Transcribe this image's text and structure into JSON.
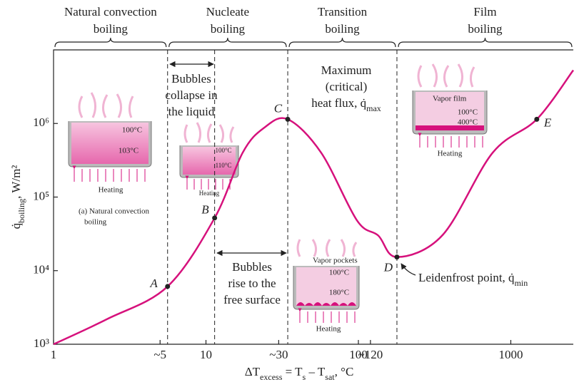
{
  "chart_data": {
    "type": "line",
    "x_label": [
      {
        "t": "ΔT"
      },
      {
        "sub": "excess"
      },
      {
        "t": " = T"
      },
      {
        "sub": "s"
      },
      {
        "t": " – T"
      },
      {
        "sub": "sat"
      },
      {
        "t": ", °C"
      }
    ],
    "y_label": [
      {
        "t": "q̇"
      },
      {
        "sub": "boiling"
      },
      {
        "t": ", W/m²"
      }
    ],
    "xscale": "log",
    "yscale": "log",
    "xlim": [
      1,
      2570
    ],
    "ylim": [
      1000,
      10000000
    ],
    "xticks": [
      1,
      {
        "value": 5,
        "label": "~5"
      },
      10,
      {
        "value": 30,
        "label": "~30"
      },
      100,
      {
        "value": 120,
        "label": "~120"
      },
      1000
    ],
    "yticks": [
      {
        "value": 1000,
        "label": "10³"
      },
      {
        "value": 10000,
        "label": "10⁴"
      },
      {
        "value": 100000,
        "label": "10⁵"
      },
      {
        "value": 1000000,
        "label": "10⁶"
      }
    ],
    "color": "#d6117c",
    "x": [
      1,
      2.25,
      5.6,
      11.4,
      17.4,
      24,
      34.4,
      57,
      98,
      135,
      179,
      357,
      760,
      1480,
      2570
    ],
    "values": [
      1000,
      2200,
      6100,
      52000,
      400000,
      870000,
      1140000,
      400000,
      48000,
      30000,
      15300,
      30500,
      400000,
      1140000,
      5300000
    ],
    "points": [
      {
        "label": "A",
        "x": 5.6,
        "y": 6100
      },
      {
        "label": "B",
        "x": 11.4,
        "y": 52000
      },
      {
        "label": "C",
        "x": 34.4,
        "y": 1140000
      },
      {
        "label": "D",
        "x": 179,
        "y": 15300
      },
      {
        "label": "E",
        "x": 1480,
        "y": 1140000
      }
    ],
    "regions": [
      [
        "Natural convection",
        "boiling"
      ],
      [
        "Nucleate",
        "boiling"
      ],
      [
        "Transition",
        "boiling"
      ],
      [
        "Film",
        "boiling"
      ]
    ],
    "annotations": [
      [
        [
          {
            "t": "Bubbles"
          }
        ],
        [
          {
            "t": "collapse in"
          }
        ],
        [
          {
            "t": "the liquid"
          }
        ]
      ],
      [
        [
          {
            "t": "Bubbles"
          }
        ],
        [
          {
            "t": "rise to the"
          }
        ],
        [
          {
            "t": "free surface"
          }
        ]
      ],
      [
        [
          {
            "t": "Maximum"
          }
        ],
        [
          {
            "t": "(critical)"
          }
        ],
        [
          {
            "t": "heat flux, q̇"
          },
          {
            "sub": "max"
          }
        ]
      ],
      [
        [
          {
            "t": "Leidenfrost point, q̇"
          },
          {
            "sub": "min"
          }
        ]
      ]
    ],
    "insets": [
      [
        "100°C",
        "103°C",
        "Heating",
        "(a) Natural convection",
        "boiling"
      ],
      [
        "100°C",
        "110°C",
        "Heating"
      ],
      [
        "Vapor film",
        "100°C",
        "400°C",
        "Heating"
      ],
      [
        "Vapor pockets",
        "100°C",
        "180°C",
        "Heating"
      ]
    ]
  }
}
